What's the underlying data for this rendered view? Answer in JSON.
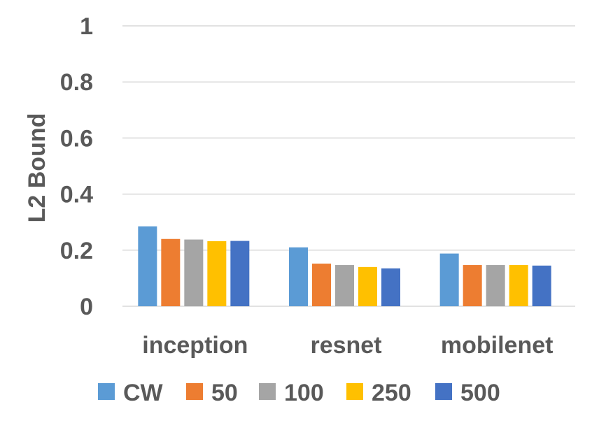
{
  "chart_data": {
    "type": "bar",
    "title": "",
    "xlabel": "",
    "ylabel": "L2 Bound",
    "ylim": [
      0,
      1
    ],
    "yticks": [
      0,
      0.2,
      0.4,
      0.6,
      0.8,
      1
    ],
    "ytick_labels": [
      "0",
      "0.2",
      "0.4",
      "0.6",
      "0.8",
      "1"
    ],
    "grid": true,
    "legend_position": "bottom",
    "categories": [
      "inception",
      "resnet",
      "mobilenet"
    ],
    "series": [
      {
        "name": "CW",
        "color": "#5b9bd5",
        "values": [
          0.285,
          0.21,
          0.188
        ]
      },
      {
        "name": "50",
        "color": "#ed7d31",
        "values": [
          0.24,
          0.152,
          0.147
        ]
      },
      {
        "name": "100",
        "color": "#a5a5a5",
        "values": [
          0.238,
          0.147,
          0.147
        ]
      },
      {
        "name": "250",
        "color": "#ffc000",
        "values": [
          0.232,
          0.14,
          0.147
        ]
      },
      {
        "name": "500",
        "color": "#4472c4",
        "values": [
          0.233,
          0.135,
          0.145
        ]
      }
    ]
  }
}
